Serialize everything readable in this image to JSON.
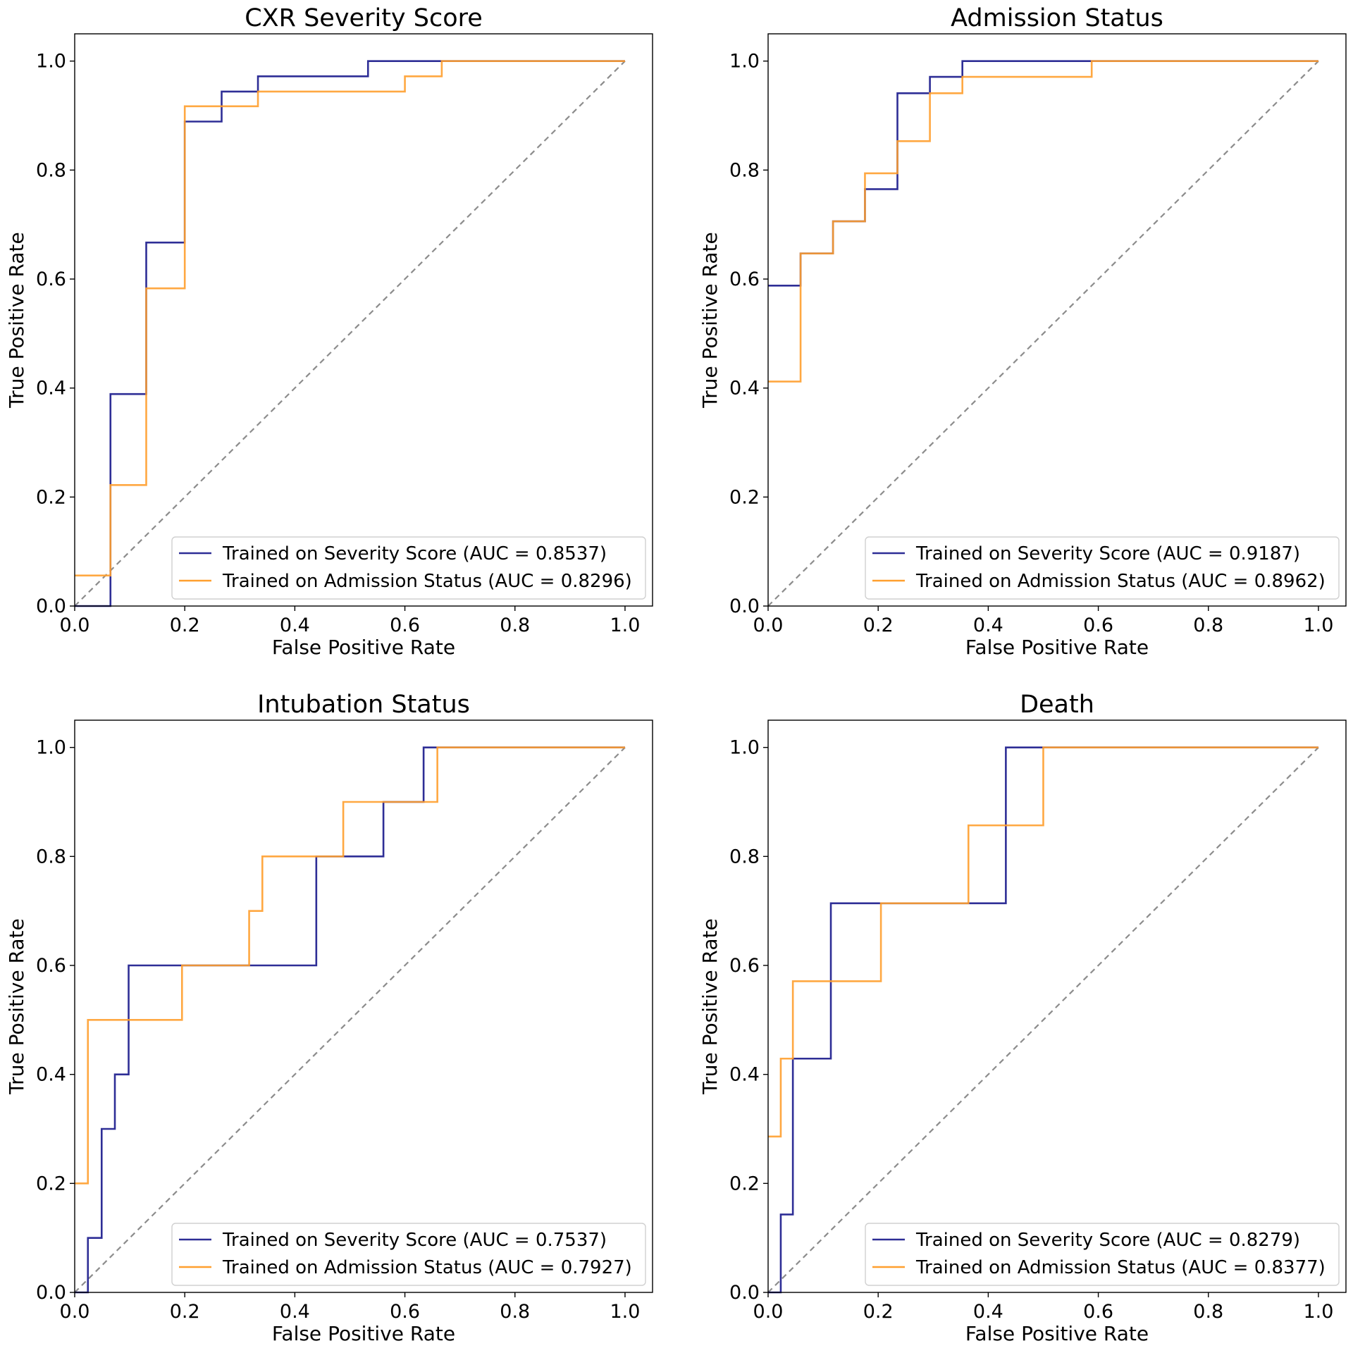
{
  "colors": {
    "severity": "#2e2e96",
    "admission": "#ff9f2e",
    "diagonal": "#8c8c8c",
    "overlap": "#d2761c"
  },
  "chart_data": [
    {
      "type": "line",
      "title": "CXR Severity Score",
      "xlabel": "False Positive Rate",
      "ylabel": "True Positive Rate",
      "xlim": [
        0,
        1.05
      ],
      "ylim": [
        0,
        1.05
      ],
      "xticks": [
        "0.0",
        "0.2",
        "0.4",
        "0.6",
        "0.8",
        "1.0"
      ],
      "yticks": [
        "0.0",
        "0.2",
        "0.4",
        "0.6",
        "0.8",
        "1.0"
      ],
      "grid": false,
      "legend_position": "lower-right",
      "series": [
        {
          "name": "Trained on Severity Score (AUC = 0.8537)",
          "points": [
            [
              0,
              0
            ],
            [
              0.065,
              0
            ],
            [
              0.065,
              0.389
            ],
            [
              0.13,
              0.389
            ],
            [
              0.13,
              0.667
            ],
            [
              0.2,
              0.667
            ],
            [
              0.2,
              0.889
            ],
            [
              0.267,
              0.889
            ],
            [
              0.267,
              0.944
            ],
            [
              0.333,
              0.944
            ],
            [
              0.333,
              0.972
            ],
            [
              0.533,
              0.972
            ],
            [
              0.533,
              1.0
            ],
            [
              1.0,
              1.0
            ]
          ]
        },
        {
          "name": "Trained on Admission Status (AUC = 0.8296)",
          "points": [
            [
              0,
              0.056
            ],
            [
              0.065,
              0.056
            ],
            [
              0.065,
              0.222
            ],
            [
              0.13,
              0.222
            ],
            [
              0.13,
              0.583
            ],
            [
              0.2,
              0.583
            ],
            [
              0.2,
              0.917
            ],
            [
              0.333,
              0.917
            ],
            [
              0.333,
              0.944
            ],
            [
              0.6,
              0.944
            ],
            [
              0.6,
              0.972
            ],
            [
              0.667,
              0.972
            ],
            [
              0.667,
              1.0
            ],
            [
              1.0,
              1.0
            ]
          ]
        }
      ]
    },
    {
      "type": "line",
      "title": "Admission Status",
      "xlabel": "False Positive Rate",
      "ylabel": "True Positive Rate",
      "xlim": [
        0,
        1.05
      ],
      "ylim": [
        0,
        1.05
      ],
      "xticks": [
        "0.0",
        "0.2",
        "0.4",
        "0.6",
        "0.8",
        "1.0"
      ],
      "yticks": [
        "0.0",
        "0.2",
        "0.4",
        "0.6",
        "0.8",
        "1.0"
      ],
      "grid": false,
      "legend_position": "lower-right",
      "series": [
        {
          "name": "Trained on Severity Score (AUC = 0.9187)",
          "points": [
            [
              0,
              0.588
            ],
            [
              0.059,
              0.588
            ],
            [
              0.059,
              0.647
            ],
            [
              0.118,
              0.647
            ],
            [
              0.118,
              0.706
            ],
            [
              0.176,
              0.706
            ],
            [
              0.176,
              0.765
            ],
            [
              0.235,
              0.765
            ],
            [
              0.235,
              0.941
            ],
            [
              0.294,
              0.941
            ],
            [
              0.294,
              0.971
            ],
            [
              0.353,
              0.971
            ],
            [
              0.353,
              1.0
            ],
            [
              1.0,
              1.0
            ]
          ]
        },
        {
          "name": "Trained on Admission Status (AUC = 0.8962)",
          "points": [
            [
              0,
              0.412
            ],
            [
              0.059,
              0.412
            ],
            [
              0.059,
              0.647
            ],
            [
              0.118,
              0.647
            ],
            [
              0.118,
              0.706
            ],
            [
              0.176,
              0.706
            ],
            [
              0.176,
              0.794
            ],
            [
              0.235,
              0.794
            ],
            [
              0.235,
              0.853
            ],
            [
              0.294,
              0.853
            ],
            [
              0.294,
              0.941
            ],
            [
              0.353,
              0.941
            ],
            [
              0.353,
              0.971
            ],
            [
              0.588,
              0.971
            ],
            [
              0.588,
              1.0
            ],
            [
              1.0,
              1.0
            ]
          ]
        }
      ]
    },
    {
      "type": "line",
      "title": "Intubation Status",
      "xlabel": "False Positive Rate",
      "ylabel": "True Positive Rate",
      "xlim": [
        0,
        1.05
      ],
      "ylim": [
        0,
        1.05
      ],
      "xticks": [
        "0.0",
        "0.2",
        "0.4",
        "0.6",
        "0.8",
        "1.0"
      ],
      "yticks": [
        "0.0",
        "0.2",
        "0.4",
        "0.6",
        "0.8",
        "1.0"
      ],
      "grid": false,
      "legend_position": "lower-right",
      "series": [
        {
          "name": "Trained on Severity Score (AUC = 0.7537)",
          "points": [
            [
              0,
              0
            ],
            [
              0.024,
              0
            ],
            [
              0.024,
              0.1
            ],
            [
              0.049,
              0.1
            ],
            [
              0.049,
              0.3
            ],
            [
              0.073,
              0.3
            ],
            [
              0.073,
              0.4
            ],
            [
              0.098,
              0.4
            ],
            [
              0.098,
              0.6
            ],
            [
              0.439,
              0.6
            ],
            [
              0.439,
              0.8
            ],
            [
              0.561,
              0.8
            ],
            [
              0.561,
              0.9
            ],
            [
              0.634,
              0.9
            ],
            [
              0.634,
              1.0
            ],
            [
              1.0,
              1.0
            ]
          ]
        },
        {
          "name": "Trained on Admission Status (AUC = 0.7927)",
          "points": [
            [
              0,
              0.2
            ],
            [
              0.024,
              0.2
            ],
            [
              0.024,
              0.5
            ],
            [
              0.195,
              0.5
            ],
            [
              0.195,
              0.6
            ],
            [
              0.317,
              0.6
            ],
            [
              0.317,
              0.7
            ],
            [
              0.341,
              0.7
            ],
            [
              0.341,
              0.8
            ],
            [
              0.488,
              0.8
            ],
            [
              0.488,
              0.9
            ],
            [
              0.659,
              0.9
            ],
            [
              0.659,
              1.0
            ],
            [
              1.0,
              1.0
            ]
          ]
        }
      ]
    },
    {
      "type": "line",
      "title": "Death",
      "xlabel": "False Positive Rate",
      "ylabel": "True Positive Rate",
      "xlim": [
        0,
        1.05
      ],
      "ylim": [
        0,
        1.05
      ],
      "xticks": [
        "0.0",
        "0.2",
        "0.4",
        "0.6",
        "0.8",
        "1.0"
      ],
      "yticks": [
        "0.0",
        "0.2",
        "0.4",
        "0.6",
        "0.8",
        "1.0"
      ],
      "grid": false,
      "legend_position": "lower-right",
      "series": [
        {
          "name": "Trained on Severity Score (AUC = 0.8279)",
          "points": [
            [
              0,
              0
            ],
            [
              0.023,
              0
            ],
            [
              0.023,
              0.143
            ],
            [
              0.045,
              0.143
            ],
            [
              0.045,
              0.429
            ],
            [
              0.114,
              0.429
            ],
            [
              0.114,
              0.714
            ],
            [
              0.432,
              0.714
            ],
            [
              0.432,
              1.0
            ],
            [
              1.0,
              1.0
            ]
          ]
        },
        {
          "name": "Trained on Admission Status (AUC = 0.8377)",
          "points": [
            [
              0,
              0.286
            ],
            [
              0.023,
              0.286
            ],
            [
              0.023,
              0.429
            ],
            [
              0.045,
              0.429
            ],
            [
              0.045,
              0.571
            ],
            [
              0.205,
              0.571
            ],
            [
              0.205,
              0.714
            ],
            [
              0.364,
              0.714
            ],
            [
              0.364,
              0.857
            ],
            [
              0.5,
              0.857
            ],
            [
              0.5,
              1.0
            ],
            [
              1.0,
              1.0
            ]
          ]
        }
      ]
    }
  ]
}
